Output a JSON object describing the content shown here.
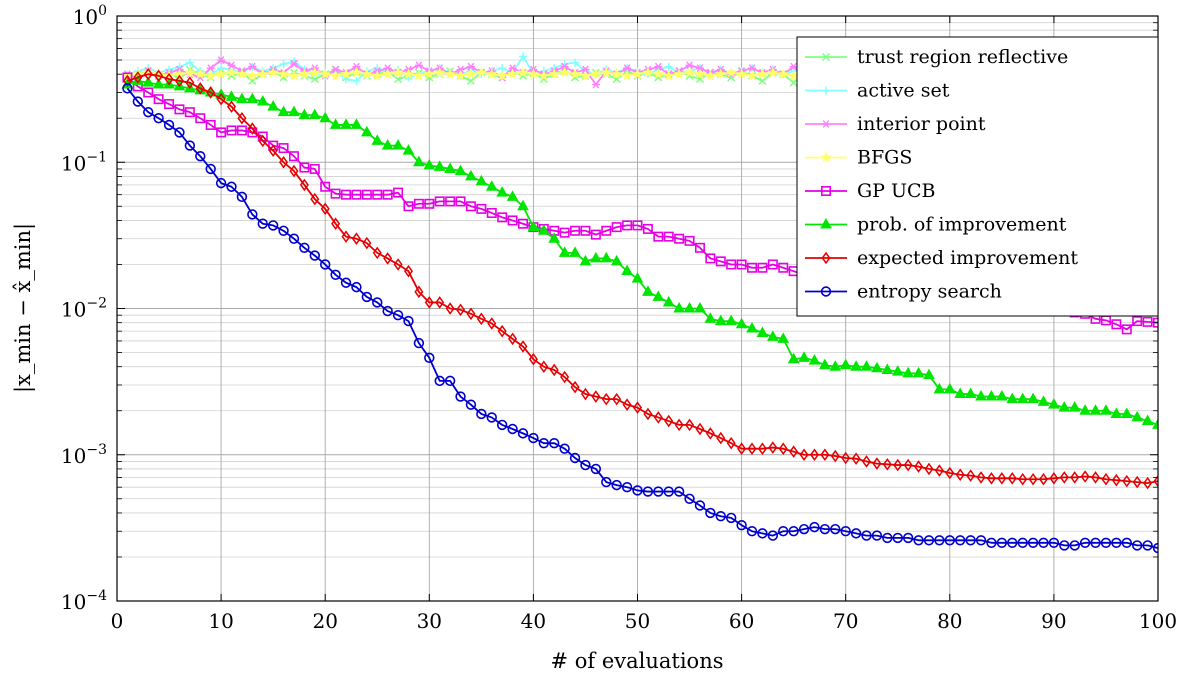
{
  "chart_data": {
    "type": "line",
    "title": "",
    "xlabel": "# of evaluations",
    "ylabel": "|x_min − x̂_min|",
    "y_scale": "log",
    "xlim": [
      0,
      100
    ],
    "ylim": [
      0.0001,
      1
    ],
    "x_ticks": [
      "0",
      "10",
      "20",
      "30",
      "40",
      "50",
      "60",
      "70",
      "80",
      "90",
      "100"
    ],
    "y_ticks": [
      {
        "base": "10",
        "exp": "−4"
      },
      {
        "base": "10",
        "exp": "−3"
      },
      {
        "base": "10",
        "exp": "−2"
      },
      {
        "base": "10",
        "exp": "−1"
      },
      {
        "base": "10",
        "exp": "0"
      }
    ],
    "grid": true,
    "legend_position": "top-right",
    "x": [
      1,
      2,
      3,
      4,
      5,
      6,
      7,
      8,
      9,
      10,
      11,
      12,
      13,
      14,
      15,
      16,
      17,
      18,
      19,
      20,
      21,
      22,
      23,
      24,
      25,
      26,
      27,
      28,
      29,
      30,
      31,
      32,
      33,
      34,
      35,
      36,
      37,
      38,
      39,
      40,
      41,
      42,
      43,
      44,
      45,
      46,
      47,
      48,
      49,
      50,
      51,
      52,
      53,
      54,
      55,
      56,
      57,
      58,
      59,
      60,
      61,
      62,
      63,
      64,
      65,
      66,
      67,
      68,
      69,
      70,
      71,
      72,
      73,
      74,
      75,
      76,
      77,
      78,
      79,
      80,
      81,
      82,
      83,
      84,
      85,
      86,
      87,
      88,
      89,
      90,
      91,
      92,
      93,
      94,
      95,
      96,
      97,
      98,
      99,
      100
    ],
    "series": [
      {
        "name": "trust region reflective",
        "color": "#80ff80",
        "marker": "x",
        "values": [
          0.38,
          0.4,
          0.42,
          0.39,
          0.41,
          0.37,
          0.43,
          0.4,
          0.38,
          0.42,
          0.39,
          0.41,
          0.36,
          0.4,
          0.42,
          0.38,
          0.41,
          0.39,
          0.37,
          0.4,
          0.43,
          0.38,
          0.41,
          0.39,
          0.4,
          0.42,
          0.37,
          0.39,
          0.41,
          0.38,
          0.4,
          0.42,
          0.39,
          0.36,
          0.41,
          0.4,
          0.38,
          0.42,
          0.39,
          0.41,
          0.37,
          0.4,
          0.43,
          0.38,
          0.39,
          0.41,
          0.4,
          0.37,
          0.42,
          0.39,
          0.41,
          0.38,
          0.4,
          0.42,
          0.39,
          0.37,
          0.41,
          0.4,
          0.38,
          0.42,
          0.39,
          0.36,
          0.41,
          0.4,
          0.35,
          0.42,
          0.39,
          0.41,
          0.38,
          0.4,
          0.42,
          0.39,
          0.37,
          0.41,
          0.4,
          0.38,
          0.42,
          0.39,
          0.41,
          0.37,
          0.4,
          0.42,
          0.38,
          0.39,
          0.41,
          0.4,
          0.37,
          0.42,
          0.39,
          0.41,
          0.38,
          0.4,
          0.42,
          0.39,
          0.37,
          0.41,
          0.4,
          0.38,
          0.4,
          0.41
        ]
      },
      {
        "name": "active set",
        "color": "#80ffff",
        "marker": "+",
        "values": [
          0.4,
          0.42,
          0.44,
          0.41,
          0.43,
          0.45,
          0.48,
          0.42,
          0.4,
          0.44,
          0.43,
          0.41,
          0.45,
          0.42,
          0.44,
          0.47,
          0.49,
          0.43,
          0.41,
          0.39,
          0.42,
          0.37,
          0.36,
          0.42,
          0.44,
          0.41,
          0.43,
          0.38,
          0.4,
          0.42,
          0.44,
          0.41,
          0.39,
          0.43,
          0.4,
          0.42,
          0.44,
          0.41,
          0.53,
          0.4,
          0.42,
          0.44,
          0.47,
          0.48,
          0.42,
          0.4,
          0.43,
          0.41,
          0.44,
          0.42,
          0.4,
          0.43,
          0.45,
          0.41,
          0.42,
          0.44,
          0.4,
          0.43,
          0.41,
          0.42,
          0.44,
          0.41,
          0.43,
          0.4,
          0.42,
          0.44,
          0.41,
          0.43,
          0.42,
          0.4,
          0.44,
          0.41,
          0.43,
          0.42,
          0.4,
          0.44,
          0.41,
          0.43,
          0.42,
          0.4,
          0.44,
          0.41,
          0.43,
          0.42,
          0.4,
          0.44,
          0.41,
          0.43,
          0.42,
          0.4,
          0.44,
          0.41,
          0.43,
          0.42,
          0.4,
          0.44,
          0.41,
          0.43,
          0.42,
          0.44
        ]
      },
      {
        "name": "interior point",
        "color": "#ff80ff",
        "marker": "*",
        "values": [
          0.4,
          0.38,
          0.42,
          0.39,
          0.41,
          0.43,
          0.4,
          0.38,
          0.44,
          0.5,
          0.46,
          0.42,
          0.45,
          0.4,
          0.43,
          0.41,
          0.47,
          0.42,
          0.44,
          0.39,
          0.43,
          0.41,
          0.45,
          0.4,
          0.42,
          0.44,
          0.41,
          0.43,
          0.46,
          0.42,
          0.44,
          0.4,
          0.43,
          0.45,
          0.41,
          0.42,
          0.38,
          0.44,
          0.41,
          0.43,
          0.4,
          0.42,
          0.45,
          0.41,
          0.43,
          0.34,
          0.42,
          0.4,
          0.44,
          0.41,
          0.43,
          0.45,
          0.4,
          0.42,
          0.46,
          0.44,
          0.41,
          0.43,
          0.4,
          0.42,
          0.44,
          0.41,
          0.43,
          0.4,
          0.45,
          0.42,
          0.4,
          0.43,
          0.41,
          0.42,
          0.44,
          0.4,
          0.43,
          0.41,
          0.42,
          0.44,
          0.4,
          0.43,
          0.41,
          0.42,
          0.44,
          0.4,
          0.43,
          0.41,
          0.42,
          0.44,
          0.4,
          0.43,
          0.41,
          0.42,
          0.44,
          0.4,
          0.43,
          0.41,
          0.42,
          0.44,
          0.4,
          0.43,
          0.41,
          0.44
        ]
      },
      {
        "name": "BFGS",
        "color": "#ffff66",
        "marker": "star",
        "values": [
          0.39,
          0.4,
          0.41,
          0.4,
          0.39,
          0.4,
          0.41,
          0.4,
          0.39,
          0.4,
          0.41,
          0.4,
          0.39,
          0.4,
          0.41,
          0.4,
          0.39,
          0.4,
          0.41,
          0.4,
          0.39,
          0.4,
          0.41,
          0.4,
          0.39,
          0.4,
          0.41,
          0.4,
          0.39,
          0.4,
          0.41,
          0.4,
          0.39,
          0.4,
          0.41,
          0.4,
          0.39,
          0.4,
          0.41,
          0.4,
          0.39,
          0.4,
          0.41,
          0.4,
          0.39,
          0.4,
          0.41,
          0.4,
          0.39,
          0.4,
          0.41,
          0.4,
          0.39,
          0.4,
          0.41,
          0.4,
          0.39,
          0.4,
          0.41,
          0.4,
          0.39,
          0.4,
          0.41,
          0.4,
          0.39,
          0.4,
          0.41,
          0.4,
          0.39,
          0.4,
          0.41,
          0.4,
          0.39,
          0.4,
          0.41,
          0.4,
          0.39,
          0.4,
          0.41,
          0.4,
          0.39,
          0.4,
          0.41,
          0.4,
          0.39,
          0.4,
          0.41,
          0.4,
          0.39,
          0.4,
          0.41,
          0.4,
          0.39,
          0.4,
          0.41,
          0.4,
          0.39,
          0.4,
          0.41,
          0.4
        ]
      },
      {
        "name": "GP UCB",
        "color": "#e600e6",
        "marker": "square",
        "values": [
          0.38,
          0.33,
          0.3,
          0.27,
          0.25,
          0.23,
          0.22,
          0.2,
          0.18,
          0.16,
          0.165,
          0.165,
          0.16,
          0.15,
          0.13,
          0.125,
          0.11,
          0.092,
          0.09,
          0.068,
          0.061,
          0.06,
          0.06,
          0.06,
          0.06,
          0.06,
          0.062,
          0.05,
          0.052,
          0.052,
          0.054,
          0.054,
          0.054,
          0.05,
          0.048,
          0.045,
          0.042,
          0.04,
          0.038,
          0.036,
          0.035,
          0.034,
          0.033,
          0.034,
          0.034,
          0.032,
          0.034,
          0.036,
          0.037,
          0.037,
          0.035,
          0.031,
          0.031,
          0.03,
          0.029,
          0.026,
          0.022,
          0.021,
          0.02,
          0.02,
          0.019,
          0.019,
          0.02,
          0.019,
          0.018,
          0.017,
          0.017,
          0.016,
          0.016,
          0.015,
          0.015,
          0.014,
          0.014,
          0.013,
          0.013,
          0.013,
          0.012,
          0.012,
          0.012,
          0.012,
          0.011,
          0.011,
          0.011,
          0.011,
          0.0105,
          0.0102,
          0.0102,
          0.01,
          0.0098,
          0.0097,
          0.0096,
          0.0094,
          0.0092,
          0.0085,
          0.0083,
          0.0078,
          0.0072,
          0.0082,
          0.0081,
          0.008
        ]
      },
      {
        "name": "prob. of improvement",
        "color": "#00e600",
        "marker": "triangle",
        "values": [
          0.34,
          0.36,
          0.35,
          0.34,
          0.34,
          0.33,
          0.32,
          0.31,
          0.3,
          0.29,
          0.28,
          0.27,
          0.27,
          0.26,
          0.24,
          0.22,
          0.22,
          0.21,
          0.21,
          0.2,
          0.18,
          0.18,
          0.18,
          0.16,
          0.14,
          0.13,
          0.13,
          0.12,
          0.1,
          0.095,
          0.093,
          0.09,
          0.087,
          0.08,
          0.074,
          0.068,
          0.062,
          0.058,
          0.05,
          0.036,
          0.034,
          0.03,
          0.024,
          0.024,
          0.021,
          0.022,
          0.022,
          0.021,
          0.018,
          0.016,
          0.013,
          0.012,
          0.011,
          0.01,
          0.01,
          0.01,
          0.0085,
          0.0082,
          0.0082,
          0.0078,
          0.0073,
          0.0068,
          0.0064,
          0.0062,
          0.0045,
          0.0046,
          0.0044,
          0.0041,
          0.004,
          0.0041,
          0.004,
          0.004,
          0.0039,
          0.0038,
          0.0037,
          0.0036,
          0.0036,
          0.0035,
          0.0028,
          0.0028,
          0.0026,
          0.0026,
          0.0025,
          0.0025,
          0.0025,
          0.0024,
          0.0024,
          0.0024,
          0.0023,
          0.0022,
          0.0021,
          0.0021,
          0.002,
          0.002,
          0.002,
          0.0019,
          0.0019,
          0.0018,
          0.0017,
          0.0016
        ]
      },
      {
        "name": "expected improvement",
        "color": "#e60000",
        "marker": "diamond",
        "values": [
          0.36,
          0.38,
          0.4,
          0.39,
          0.37,
          0.36,
          0.35,
          0.32,
          0.3,
          0.27,
          0.24,
          0.2,
          0.17,
          0.14,
          0.12,
          0.1,
          0.087,
          0.07,
          0.056,
          0.048,
          0.038,
          0.031,
          0.03,
          0.028,
          0.024,
          0.022,
          0.02,
          0.018,
          0.013,
          0.011,
          0.011,
          0.01,
          0.0098,
          0.0092,
          0.0085,
          0.0079,
          0.007,
          0.0062,
          0.0055,
          0.0045,
          0.004,
          0.0038,
          0.0034,
          0.0029,
          0.0026,
          0.0025,
          0.0024,
          0.0024,
          0.0022,
          0.0021,
          0.0019,
          0.0018,
          0.0017,
          0.0016,
          0.0016,
          0.0015,
          0.0014,
          0.0013,
          0.0012,
          0.0011,
          0.0011,
          0.0011,
          0.00112,
          0.0011,
          0.00105,
          0.001,
          0.001,
          0.001,
          0.00098,
          0.00095,
          0.00094,
          0.0009,
          0.00087,
          0.00086,
          0.00085,
          0.00085,
          0.00083,
          0.0008,
          0.00078,
          0.00075,
          0.00073,
          0.00072,
          0.0007,
          0.00069,
          0.00069,
          0.00069,
          0.00068,
          0.00068,
          0.00068,
          0.00069,
          0.0007,
          0.0007,
          0.00071,
          0.0007,
          0.00068,
          0.00067,
          0.00066,
          0.00065,
          0.00064,
          0.00066
        ]
      },
      {
        "name": "entropy search",
        "color": "#0000cc",
        "marker": "circle",
        "values": [
          0.32,
          0.26,
          0.22,
          0.2,
          0.18,
          0.16,
          0.13,
          0.11,
          0.09,
          0.072,
          0.068,
          0.058,
          0.044,
          0.038,
          0.037,
          0.034,
          0.03,
          0.026,
          0.023,
          0.02,
          0.017,
          0.015,
          0.014,
          0.012,
          0.011,
          0.0096,
          0.009,
          0.0082,
          0.0058,
          0.0046,
          0.0032,
          0.0032,
          0.0025,
          0.0022,
          0.0019,
          0.0018,
          0.0016,
          0.0015,
          0.0014,
          0.0013,
          0.0012,
          0.0012,
          0.0011,
          0.00095,
          0.00085,
          0.0008,
          0.00065,
          0.00062,
          0.0006,
          0.00057,
          0.00056,
          0.00056,
          0.00056,
          0.00056,
          0.0005,
          0.00045,
          0.0004,
          0.00038,
          0.00037,
          0.00033,
          0.0003,
          0.00029,
          0.00028,
          0.0003,
          0.0003,
          0.00031,
          0.00032,
          0.00031,
          0.00031,
          0.0003,
          0.00029,
          0.00028,
          0.00028,
          0.00027,
          0.00027,
          0.00027,
          0.00026,
          0.00026,
          0.00026,
          0.00026,
          0.00026,
          0.00026,
          0.00026,
          0.00025,
          0.00025,
          0.00025,
          0.00025,
          0.00025,
          0.00025,
          0.00025,
          0.00024,
          0.00024,
          0.00025,
          0.00025,
          0.00025,
          0.00025,
          0.00025,
          0.00024,
          0.00024,
          0.00023
        ]
      }
    ]
  }
}
